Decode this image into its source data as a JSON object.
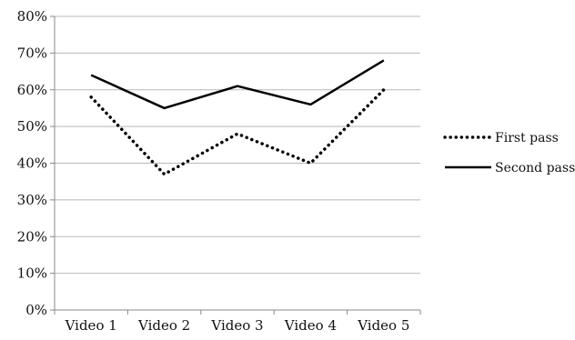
{
  "chart_data": {
    "type": "line",
    "categories": [
      "Video 1",
      "Video 2",
      "Video 3",
      "Video 4",
      "Video 5"
    ],
    "series": [
      {
        "name": "First pass",
        "values": [
          0.58,
          0.37,
          0.48,
          0.4,
          0.6
        ],
        "line_style": "dotted",
        "color": "#000000"
      },
      {
        "name": "Second pass",
        "values": [
          0.64,
          0.55,
          0.61,
          0.56,
          0.68
        ],
        "line_style": "solid",
        "color": "#000000"
      }
    ],
    "y_ticks": [
      "0%",
      "10%",
      "20%",
      "30%",
      "40%",
      "50%",
      "60%",
      "70%",
      "80%"
    ],
    "ylim": [
      0,
      0.8
    ],
    "grid": true,
    "legend_position": "right"
  }
}
